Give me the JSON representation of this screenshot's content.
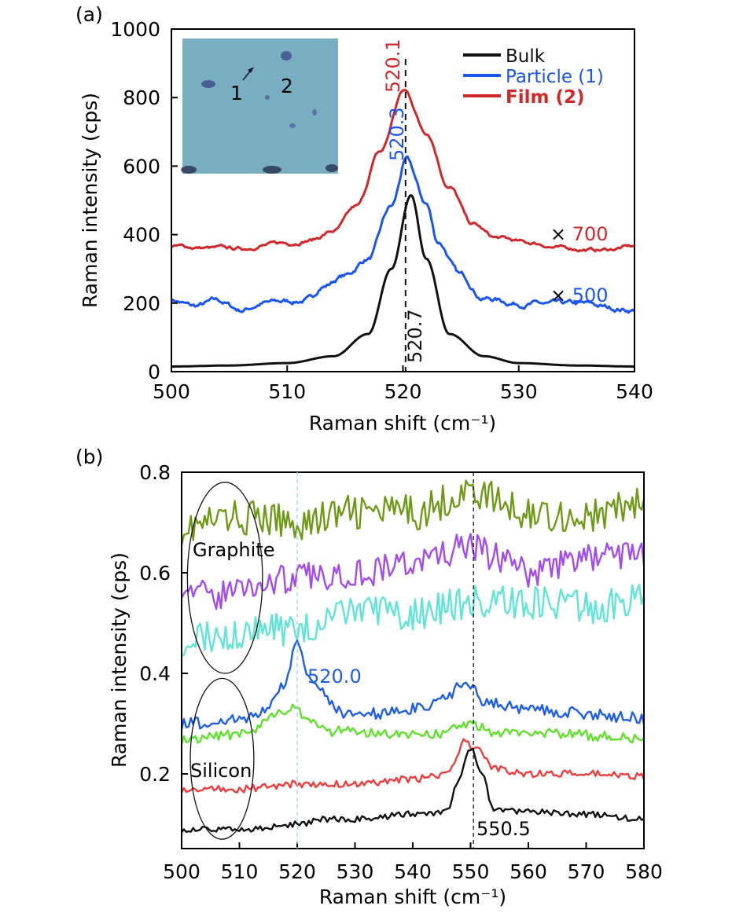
{
  "chart_data": [
    {
      "panel_label": "(a)",
      "type": "line",
      "title": "",
      "xlabel": "Raman shift (cm⁻¹)",
      "ylabel": "Raman intensity (cps)",
      "xlim": [
        500,
        540
      ],
      "ylim": [
        0,
        1000
      ],
      "xticks": [
        500,
        510,
        520,
        530,
        540
      ],
      "yticks": [
        0,
        200,
        400,
        600,
        800,
        1000
      ],
      "grid": false,
      "legend_position": "top-right",
      "inset": {
        "description": "optical micrograph",
        "labels": [
          "1",
          "2"
        ],
        "color": "#79aec0"
      },
      "series": [
        {
          "name": "Bulk",
          "color": "#111111",
          "peak": 520.7,
          "peak_value": 515,
          "baseline": 15,
          "width": 1.6,
          "noise": 0,
          "points": [
            [
              500,
              15
            ],
            [
              505,
              18
            ],
            [
              510,
              25
            ],
            [
              514,
              45
            ],
            [
              517,
              110
            ],
            [
              519,
              300
            ],
            [
              520.7,
              515
            ],
            [
              522,
              330
            ],
            [
              524,
              110
            ],
            [
              527,
              45
            ],
            [
              530,
              25
            ],
            [
              535,
              18
            ],
            [
              540,
              15
            ]
          ]
        },
        {
          "name": "Particle (1)",
          "color": "#1a55f0",
          "peak": 520.3,
          "peak_value": 615,
          "baseline": 190,
          "noise": 12,
          "points": [
            [
              500,
              210
            ],
            [
              502,
              190
            ],
            [
              504,
              205
            ],
            [
              506,
              180
            ],
            [
              508,
              200
            ],
            [
              510,
              205
            ],
            [
              512,
              210
            ],
            [
              513,
              250
            ],
            [
              515,
              280
            ],
            [
              517,
              330
            ],
            [
              519,
              480
            ],
            [
              520.3,
              615
            ],
            [
              522,
              490
            ],
            [
              523,
              380
            ],
            [
              525,
              280
            ],
            [
              527,
              215
            ],
            [
              530,
              200
            ],
            [
              533,
              195
            ],
            [
              536,
              195
            ],
            [
              538,
              185
            ],
            [
              540,
              180
            ]
          ]
        },
        {
          "name": "Film (2)",
          "color": "#d0282a",
          "peak": 520.1,
          "peak_value": 820,
          "baseline": 360,
          "noise": 8,
          "points": [
            [
              500,
              365
            ],
            [
              504,
              360
            ],
            [
              506,
              358
            ],
            [
              508,
              370
            ],
            [
              510,
              375
            ],
            [
              512,
              385
            ],
            [
              514,
              410
            ],
            [
              516,
              480
            ],
            [
              518,
              640
            ],
            [
              520.1,
              820
            ],
            [
              522,
              700
            ],
            [
              524,
              540
            ],
            [
              526,
              430
            ],
            [
              528,
              390
            ],
            [
              531,
              375
            ],
            [
              534,
              360
            ],
            [
              537,
              355
            ],
            [
              540,
              365
            ]
          ]
        }
      ],
      "annotations": [
        {
          "text": "520.1",
          "color": "#d0282a",
          "rotation": "vertical"
        },
        {
          "text": "520.3",
          "color": "#1a55f0",
          "rotation": "vertical"
        },
        {
          "text": "520.7",
          "color": "#111111",
          "rotation": "vertical"
        },
        {
          "text": "× 700",
          "color": "#d0282a",
          "multiplier_for": "Film (2)"
        },
        {
          "text": "× 500",
          "color": "#1a55f0",
          "multiplier_for": "Particle (1)"
        }
      ],
      "reference_line_x": 520.7
    },
    {
      "panel_label": "(b)",
      "type": "line",
      "title": "",
      "xlabel": "Raman shift (cm⁻¹)",
      "ylabel": "Raman intensity (cps)",
      "xlim": [
        500,
        580
      ],
      "ylim": [
        0.07,
        0.8
      ],
      "xticks": [
        500,
        510,
        520,
        530,
        540,
        550,
        560,
        570,
        580
      ],
      "yticks": [
        0.2,
        0.4,
        0.6,
        0.8
      ],
      "grid": false,
      "legend_position": "none",
      "series": [
        {
          "name": "olive",
          "color": "#6f9a18",
          "noise": 0.035,
          "points": [
            [
              500,
              0.69
            ],
            [
              510,
              0.71
            ],
            [
              520,
              0.7
            ],
            [
              530,
              0.72
            ],
            [
              540,
              0.72
            ],
            [
              550,
              0.76
            ],
            [
              560,
              0.72
            ],
            [
              570,
              0.71
            ],
            [
              580,
              0.74
            ]
          ]
        },
        {
          "name": "violet",
          "color": "#a24cf0",
          "noise": 0.03,
          "points": [
            [
              500,
              0.58
            ],
            [
              505,
              0.55
            ],
            [
              510,
              0.57
            ],
            [
              520,
              0.59
            ],
            [
              530,
              0.6
            ],
            [
              540,
              0.62
            ],
            [
              550,
              0.65
            ],
            [
              555,
              0.63
            ],
            [
              560,
              0.6
            ],
            [
              570,
              0.63
            ],
            [
              580,
              0.64
            ]
          ]
        },
        {
          "name": "cyan",
          "color": "#5fe5d6",
          "noise": 0.035,
          "points": [
            [
              500,
              0.47
            ],
            [
              510,
              0.48
            ],
            [
              520,
              0.49
            ],
            [
              530,
              0.52
            ],
            [
              540,
              0.52
            ],
            [
              550,
              0.54
            ],
            [
              560,
              0.54
            ],
            [
              570,
              0.53
            ],
            [
              580,
              0.55
            ]
          ]
        },
        {
          "name": "blue",
          "color": "#1e5de8",
          "noise": 0.012,
          "points": [
            [
              500,
              0.3
            ],
            [
              512,
              0.31
            ],
            [
              514,
              0.33
            ],
            [
              518,
              0.38
            ],
            [
              520,
              0.465
            ],
            [
              522,
              0.4
            ],
            [
              524,
              0.36
            ],
            [
              528,
              0.32
            ],
            [
              535,
              0.32
            ],
            [
              540,
              0.33
            ],
            [
              546,
              0.35
            ],
            [
              548,
              0.38
            ],
            [
              550,
              0.37
            ],
            [
              553,
              0.34
            ],
            [
              560,
              0.33
            ],
            [
              570,
              0.32
            ],
            [
              580,
              0.31
            ]
          ]
        },
        {
          "name": "green",
          "color": "#5fe02a",
          "noise": 0.01,
          "points": [
            [
              500,
              0.27
            ],
            [
              512,
              0.28
            ],
            [
              515,
              0.31
            ],
            [
              519,
              0.33
            ],
            [
              522,
              0.31
            ],
            [
              526,
              0.285
            ],
            [
              535,
              0.28
            ],
            [
              545,
              0.28
            ],
            [
              550,
              0.3
            ],
            [
              555,
              0.28
            ],
            [
              565,
              0.28
            ],
            [
              580,
              0.27
            ]
          ]
        },
        {
          "name": "red",
          "color": "#f03c3c",
          "noise": 0.007,
          "points": [
            [
              500,
              0.17
            ],
            [
              510,
              0.17
            ],
            [
              520,
              0.18
            ],
            [
              530,
              0.18
            ],
            [
              540,
              0.19
            ],
            [
              546,
              0.2
            ],
            [
              549,
              0.265
            ],
            [
              551,
              0.25
            ],
            [
              554,
              0.21
            ],
            [
              560,
              0.2
            ],
            [
              570,
              0.2
            ],
            [
              580,
              0.195
            ]
          ]
        },
        {
          "name": "black",
          "color": "#111111",
          "noise": 0.006,
          "points": [
            [
              500,
              0.09
            ],
            [
              510,
              0.09
            ],
            [
              520,
              0.1
            ],
            [
              525,
              0.11
            ],
            [
              530,
              0.11
            ],
            [
              540,
              0.12
            ],
            [
              546,
              0.125
            ],
            [
              548,
              0.19
            ],
            [
              550,
              0.25
            ],
            [
              552,
              0.2
            ],
            [
              554,
              0.13
            ],
            [
              560,
              0.125
            ],
            [
              570,
              0.12
            ],
            [
              580,
              0.11
            ]
          ]
        }
      ],
      "annotations": [
        {
          "text": "Graphite",
          "color": "#000000"
        },
        {
          "text": "Silicon",
          "color": "#000000"
        },
        {
          "text": "520.0",
          "color": "#1e5de8"
        },
        {
          "text": "550.5",
          "color": "#000000"
        }
      ],
      "reference_lines_x": [
        {
          "x": 520.0,
          "color": "#9ad4f0"
        },
        {
          "x": 550.5,
          "color": "#111111"
        }
      ],
      "ellipses": [
        {
          "label": "Graphite",
          "cx": 507.5,
          "cy": 0.59,
          "rx": 6.5,
          "ry": 0.19
        },
        {
          "label": "Silicon",
          "cx": 507.0,
          "cy": 0.23,
          "rx": 5.5,
          "ry": 0.16
        }
      ]
    }
  ]
}
